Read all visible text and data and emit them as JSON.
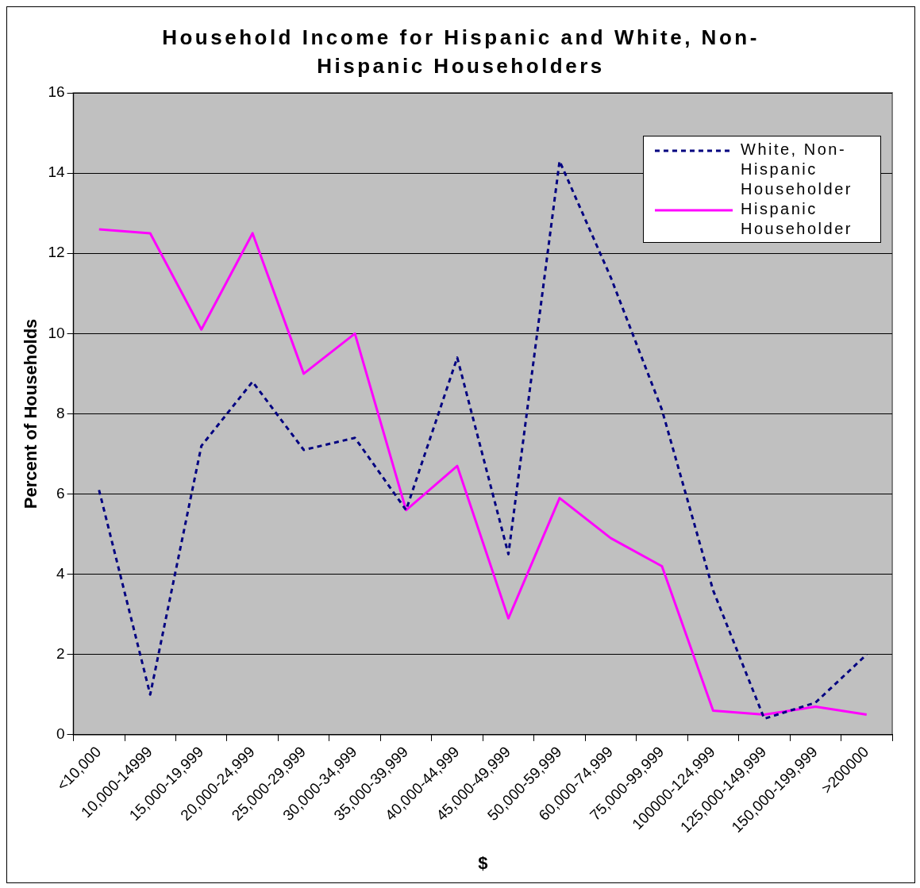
{
  "chart_data": {
    "type": "line",
    "title": "Household Income for Hispanic and White, Non-Hispanic Householders",
    "xlabel": "$",
    "ylabel": "Percent of Households",
    "categories": [
      "<10,000",
      "10,000-14999",
      "15,000-19,999",
      "20,000-24,999",
      "25,000-29,999",
      "30,000-34,999",
      "35,000-39,999",
      "40,000-44,999",
      "45,000-49,999",
      "50,000-59,999",
      "60,000-74,999",
      "75,000-99,999",
      "100000-124,999",
      "125,000-149,999",
      "150,000-199,999",
      ">200000"
    ],
    "series": [
      {
        "name": "White, Non-Hispanic Householder",
        "color": "#000080",
        "line_style": "dashed",
        "values": [
          6.1,
          1.0,
          7.2,
          8.8,
          7.1,
          7.4,
          5.6,
          9.4,
          4.5,
          14.3,
          11.4,
          8.1,
          3.6,
          0.4,
          0.8,
          2.0
        ]
      },
      {
        "name": "Hispanic Householder",
        "color": "#ff00ff",
        "line_style": "solid",
        "values": [
          12.6,
          12.5,
          10.1,
          12.5,
          9.0,
          10.0,
          5.6,
          6.7,
          2.9,
          5.9,
          4.9,
          4.2,
          0.6,
          0.5,
          0.7,
          0.5
        ]
      }
    ],
    "ylim": [
      0,
      16
    ],
    "yticks": [
      0,
      2,
      4,
      6,
      8,
      10,
      12,
      14,
      16
    ],
    "grid": "y",
    "legend": "top right",
    "marker": "none"
  }
}
